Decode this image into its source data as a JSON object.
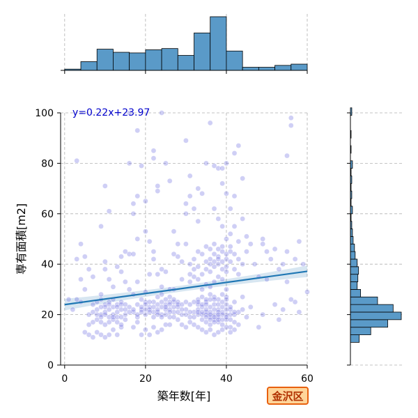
{
  "district_badge": "金沢区",
  "colors": {
    "hist_fill": "#5a9ac8",
    "point": "#6a6adf",
    "regression": "#1f77b4",
    "equation": "#0000cc",
    "badge_border": "#e8600e",
    "badge_fill": "#ffd59a"
  },
  "chart_data": {
    "type": "scatter",
    "xlabel": "築年数[年]",
    "ylabel": "専有面積[m2]",
    "xlim": [
      -1,
      60
    ],
    "ylim": [
      0,
      100
    ],
    "xticks": [
      0,
      20,
      40,
      60
    ],
    "yticks": [
      0,
      20,
      40,
      60,
      80,
      100
    ],
    "grid": true,
    "regression": {
      "slope": 0.22,
      "intercept": 23.97,
      "label": "y=0.22x+23.97"
    },
    "x_marginal_hist": {
      "bin_width": 4,
      "bin_starts": [
        0,
        4,
        8,
        12,
        16,
        20,
        24,
        28,
        32,
        36,
        40,
        44,
        48,
        52,
        56
      ],
      "counts": [
        2,
        14,
        34,
        29,
        28,
        33,
        35,
        24,
        60,
        86,
        31,
        5,
        5,
        8,
        10
      ]
    },
    "y_marginal_hist": {
      "bin_width": 3,
      "bin_starts": [
        9,
        12,
        15,
        18,
        21,
        24,
        27,
        30,
        33,
        36,
        39,
        42,
        45,
        48,
        51,
        54,
        57,
        60,
        63,
        66,
        69,
        72,
        75,
        78,
        81,
        84,
        87,
        90,
        93,
        96,
        99
      ],
      "counts": [
        13,
        30,
        55,
        75,
        63,
        40,
        15,
        10,
        11,
        12,
        10,
        7,
        6,
        4,
        3,
        2,
        1,
        3,
        1,
        2,
        1,
        2,
        1,
        3,
        0,
        1,
        0,
        1,
        0,
        0,
        2
      ]
    },
    "points": [
      [
        5,
        13
      ],
      [
        6,
        12
      ],
      [
        7,
        11
      ],
      [
        8,
        13
      ],
      [
        9,
        12
      ],
      [
        10,
        11
      ],
      [
        11,
        12
      ],
      [
        12,
        14
      ],
      [
        13,
        12
      ],
      [
        14,
        15
      ],
      [
        6,
        16
      ],
      [
        7,
        17
      ],
      [
        8,
        18
      ],
      [
        9,
        17
      ],
      [
        10,
        16
      ],
      [
        11,
        17
      ],
      [
        12,
        18
      ],
      [
        13,
        17
      ],
      [
        14,
        16
      ],
      [
        15,
        18
      ],
      [
        6,
        20
      ],
      [
        7,
        21
      ],
      [
        8,
        22
      ],
      [
        9,
        20
      ],
      [
        10,
        21
      ],
      [
        11,
        22
      ],
      [
        12,
        20
      ],
      [
        13,
        21
      ],
      [
        14,
        22
      ],
      [
        15,
        20
      ],
      [
        7,
        24
      ],
      [
        8,
        25
      ],
      [
        9,
        26
      ],
      [
        10,
        24
      ],
      [
        11,
        25
      ],
      [
        12,
        26
      ],
      [
        13,
        24
      ],
      [
        14,
        25
      ],
      [
        16,
        23
      ],
      [
        17,
        21
      ],
      [
        18,
        19
      ],
      [
        19,
        22
      ],
      [
        20,
        20
      ],
      [
        21,
        23
      ],
      [
        22,
        21
      ],
      [
        23,
        24
      ],
      [
        24,
        20
      ],
      [
        25,
        22
      ],
      [
        26,
        19
      ],
      [
        27,
        21
      ],
      [
        18,
        24
      ],
      [
        19,
        26
      ],
      [
        20,
        25
      ],
      [
        21,
        22
      ],
      [
        22,
        25
      ],
      [
        23,
        21
      ],
      [
        24,
        25
      ],
      [
        25,
        24
      ],
      [
        26,
        22
      ],
      [
        27,
        25
      ],
      [
        17,
        28
      ],
      [
        20,
        29
      ],
      [
        23,
        27
      ],
      [
        24,
        28
      ],
      [
        26,
        27
      ],
      [
        28,
        23
      ],
      [
        29,
        20
      ],
      [
        30,
        22
      ],
      [
        31,
        19
      ],
      [
        32,
        21
      ],
      [
        33,
        20
      ],
      [
        34,
        18
      ],
      [
        35,
        17
      ],
      [
        36,
        16
      ],
      [
        37,
        18
      ],
      [
        38,
        17
      ],
      [
        39,
        16
      ],
      [
        40,
        18
      ],
      [
        41,
        15
      ],
      [
        42,
        17
      ],
      [
        33,
        22
      ],
      [
        34,
        20
      ],
      [
        35,
        21
      ],
      [
        36,
        19
      ],
      [
        37,
        20
      ],
      [
        38,
        19
      ],
      [
        39,
        21
      ],
      [
        40,
        20
      ],
      [
        41,
        22
      ],
      [
        42,
        20
      ],
      [
        33,
        24
      ],
      [
        34,
        23
      ],
      [
        35,
        25
      ],
      [
        36,
        23
      ],
      [
        37,
        24
      ],
      [
        38,
        22
      ],
      [
        39,
        23
      ],
      [
        40,
        24
      ],
      [
        41,
        23
      ],
      [
        42,
        25
      ],
      [
        33,
        26
      ],
      [
        34,
        27
      ],
      [
        35,
        26
      ],
      [
        36,
        28
      ],
      [
        37,
        27
      ],
      [
        38,
        26
      ],
      [
        39,
        28
      ],
      [
        40,
        27
      ],
      [
        43,
        21
      ],
      [
        44,
        22
      ],
      [
        31,
        33
      ],
      [
        32,
        35
      ],
      [
        33,
        34
      ],
      [
        34,
        36
      ],
      [
        35,
        38
      ],
      [
        36,
        37
      ],
      [
        37,
        39
      ],
      [
        38,
        40
      ],
      [
        39,
        38
      ],
      [
        40,
        37
      ],
      [
        36,
        42
      ],
      [
        37,
        44
      ],
      [
        38,
        43
      ],
      [
        39,
        45
      ],
      [
        40,
        42
      ],
      [
        41,
        41
      ],
      [
        42,
        38
      ],
      [
        37,
        33
      ],
      [
        38,
        35
      ],
      [
        39,
        34
      ],
      [
        35,
        41
      ],
      [
        36,
        40
      ],
      [
        37,
        41
      ],
      [
        38,
        42
      ],
      [
        39,
        41
      ],
      [
        40,
        39
      ],
      [
        34,
        30
      ],
      [
        35,
        32
      ],
      [
        36,
        31
      ],
      [
        40,
        30
      ],
      [
        3,
        26
      ],
      [
        4,
        25
      ],
      [
        2,
        22
      ],
      [
        5,
        30
      ],
      [
        4,
        34
      ],
      [
        6,
        38
      ],
      [
        4,
        48
      ],
      [
        5,
        43
      ],
      [
        3,
        42
      ],
      [
        7,
        35
      ],
      [
        10,
        41
      ],
      [
        10,
        38
      ],
      [
        9,
        55
      ],
      [
        11,
        61
      ],
      [
        10,
        71
      ],
      [
        14,
        43
      ],
      [
        15,
        45
      ],
      [
        16,
        44
      ],
      [
        17,
        44
      ],
      [
        13,
        39
      ],
      [
        14,
        37
      ],
      [
        15,
        33
      ],
      [
        16,
        30
      ],
      [
        12,
        31
      ],
      [
        11,
        34
      ],
      [
        17,
        60
      ],
      [
        17,
        64
      ],
      [
        18,
        67
      ],
      [
        18,
        50
      ],
      [
        16,
        80
      ],
      [
        18,
        93
      ],
      [
        19,
        79
      ],
      [
        20,
        65
      ],
      [
        20,
        53
      ],
      [
        21,
        49
      ],
      [
        22,
        45
      ],
      [
        22,
        42
      ],
      [
        21,
        36
      ],
      [
        23,
        36
      ],
      [
        24,
        38
      ],
      [
        23,
        69
      ],
      [
        23,
        71
      ],
      [
        22,
        85
      ],
      [
        22,
        82
      ],
      [
        25,
        80
      ],
      [
        26,
        73
      ],
      [
        27,
        53
      ],
      [
        28,
        48
      ],
      [
        28,
        43
      ],
      [
        29,
        41
      ],
      [
        30,
        48
      ],
      [
        30,
        60
      ],
      [
        30,
        64
      ],
      [
        31,
        67
      ],
      [
        31,
        75
      ],
      [
        30,
        89
      ],
      [
        32,
        62
      ],
      [
        33,
        70
      ],
      [
        34,
        68
      ],
      [
        33,
        57
      ],
      [
        35,
        80
      ],
      [
        36,
        96
      ],
      [
        37,
        62
      ],
      [
        37,
        79
      ],
      [
        38,
        78
      ],
      [
        39,
        78
      ],
      [
        40,
        80
      ],
      [
        39,
        72
      ],
      [
        40,
        68
      ],
      [
        41,
        62
      ],
      [
        42,
        67
      ],
      [
        43,
        87
      ],
      [
        42,
        84
      ],
      [
        44,
        74
      ],
      [
        44,
        58
      ],
      [
        45,
        51
      ],
      [
        46,
        48
      ],
      [
        45,
        45
      ],
      [
        44,
        40
      ],
      [
        43,
        36
      ],
      [
        41,
        52
      ],
      [
        42,
        55
      ],
      [
        43,
        49
      ],
      [
        41,
        47
      ],
      [
        47,
        40
      ],
      [
        48,
        35
      ],
      [
        49,
        50
      ],
      [
        49,
        48
      ],
      [
        50,
        45
      ],
      [
        51,
        42
      ],
      [
        52,
        46
      ],
      [
        53,
        38
      ],
      [
        54,
        40
      ],
      [
        55,
        45
      ],
      [
        56,
        98
      ],
      [
        56,
        95
      ],
      [
        55,
        83
      ],
      [
        58,
        49
      ],
      [
        57,
        42
      ],
      [
        59,
        40
      ],
      [
        60,
        29
      ],
      [
        58,
        21
      ],
      [
        57,
        25
      ],
      [
        54,
        22
      ],
      [
        53,
        18
      ],
      [
        49,
        20
      ],
      [
        48,
        15
      ],
      [
        46,
        23
      ],
      [
        45,
        19
      ],
      [
        44,
        27
      ],
      [
        50,
        34
      ],
      [
        55,
        33
      ],
      [
        56,
        26
      ],
      [
        52,
        24
      ],
      [
        3,
        81
      ],
      [
        1,
        26
      ],
      [
        9,
        28
      ],
      [
        18,
        33
      ],
      [
        25,
        37
      ],
      [
        27,
        44
      ],
      [
        16,
        100
      ],
      [
        24,
        100
      ],
      [
        26,
        30
      ],
      [
        29,
        34
      ],
      [
        27,
        30
      ],
      [
        24,
        31
      ],
      [
        20,
        14
      ],
      [
        21,
        12
      ],
      [
        22,
        15
      ],
      [
        23,
        13
      ],
      [
        24,
        14
      ],
      [
        25,
        16
      ],
      [
        18,
        17
      ],
      [
        17,
        15
      ],
      [
        19,
        12
      ],
      [
        26,
        16
      ],
      [
        28,
        18
      ],
      [
        29,
        16
      ],
      [
        30,
        15
      ],
      [
        31,
        17
      ],
      [
        32,
        16
      ],
      [
        33,
        15
      ],
      [
        34,
        14
      ],
      [
        35,
        13
      ],
      [
        36,
        14
      ],
      [
        37,
        12
      ],
      [
        38,
        13
      ],
      [
        39,
        14
      ],
      [
        40,
        15
      ],
      [
        41,
        13
      ],
      [
        42,
        14
      ],
      [
        43,
        16
      ],
      [
        10,
        20
      ],
      [
        11,
        19
      ],
      [
        12,
        19
      ],
      [
        13,
        19
      ],
      [
        8,
        20
      ],
      [
        9,
        19
      ],
      [
        14,
        19
      ],
      [
        15,
        22
      ],
      [
        16,
        21
      ],
      [
        17,
        22
      ],
      [
        18,
        20
      ],
      [
        19,
        21
      ],
      [
        20,
        22
      ],
      [
        21,
        21
      ],
      [
        22,
        19
      ],
      [
        23,
        20
      ],
      [
        24,
        19
      ],
      [
        25,
        20
      ],
      [
        26,
        21
      ],
      [
        27,
        19
      ],
      [
        28,
        21
      ],
      [
        29,
        22
      ],
      [
        30,
        20
      ],
      [
        31,
        21
      ],
      [
        32,
        19
      ],
      [
        33,
        21
      ],
      [
        34,
        21
      ],
      [
        35,
        20
      ],
      [
        36,
        21
      ],
      [
        37,
        22
      ],
      [
        38,
        21
      ],
      [
        39,
        20
      ],
      [
        40,
        22
      ],
      [
        41,
        20
      ],
      [
        42,
        21
      ],
      [
        35,
        19
      ],
      [
        36,
        18
      ],
      [
        37,
        19
      ],
      [
        38,
        18
      ],
      [
        39,
        18
      ],
      [
        40,
        19
      ],
      [
        41,
        18
      ],
      [
        38,
        20
      ],
      [
        37,
        17
      ],
      [
        36,
        20
      ],
      [
        35,
        22
      ],
      [
        34,
        24
      ],
      [
        33,
        25
      ],
      [
        38,
        24
      ],
      [
        39,
        25
      ],
      [
        40,
        26
      ],
      [
        37,
        26
      ],
      [
        36,
        26
      ],
      [
        35,
        24
      ],
      [
        12,
        23
      ],
      [
        11,
        24
      ],
      [
        10,
        23
      ],
      [
        9,
        23
      ],
      [
        13,
        23
      ],
      [
        14,
        24
      ],
      [
        15,
        24
      ],
      [
        20,
        24
      ],
      [
        21,
        25
      ],
      [
        22,
        23
      ],
      [
        25,
        26
      ],
      [
        26,
        25
      ],
      [
        27,
        26
      ],
      [
        28,
        25
      ],
      [
        19,
        23
      ],
      [
        23,
        22
      ],
      [
        24,
        23
      ],
      [
        25,
        23
      ],
      [
        26,
        24
      ],
      [
        27,
        23
      ],
      [
        28,
        24
      ],
      [
        29,
        24
      ],
      [
        30,
        25
      ],
      [
        31,
        24
      ],
      [
        32,
        25
      ],
      [
        38,
        58
      ],
      [
        39,
        55
      ],
      [
        40,
        50
      ],
      [
        39,
        47
      ],
      [
        38,
        46
      ],
      [
        41,
        45
      ],
      [
        42,
        44
      ],
      [
        43,
        42
      ],
      [
        40,
        44
      ],
      [
        37,
        48
      ],
      [
        36,
        46
      ],
      [
        35,
        47
      ],
      [
        34,
        44
      ],
      [
        33,
        45
      ],
      [
        32,
        42
      ],
      [
        31,
        40
      ],
      [
        32,
        38
      ],
      [
        33,
        39
      ],
      [
        31,
        36
      ]
    ]
  }
}
